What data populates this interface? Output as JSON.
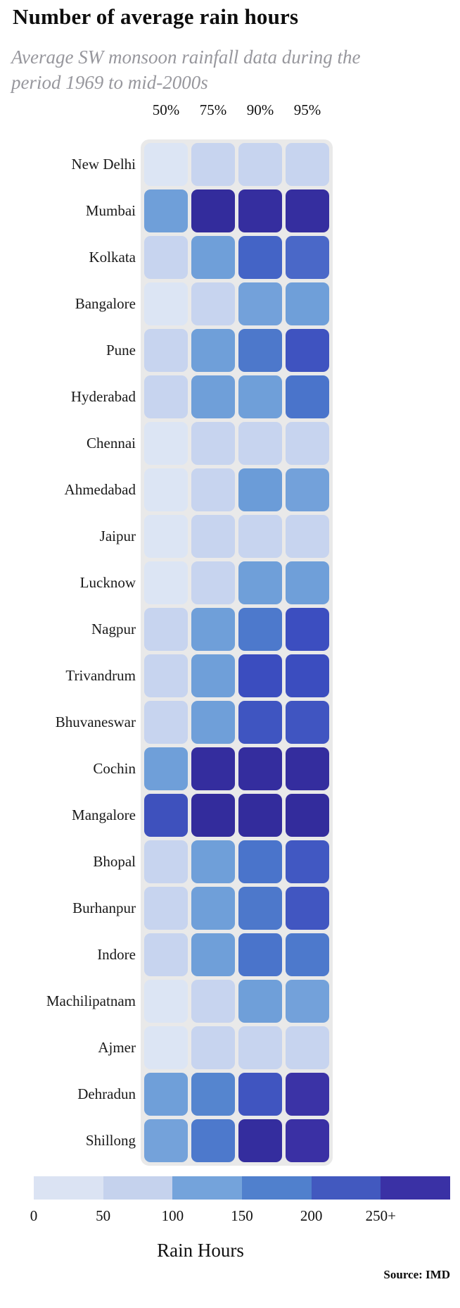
{
  "header": {
    "title": "Number of average rain hours",
    "subtitle": "Average SW monsoon rainfall data during the period 1969 to mid-2000s"
  },
  "legend": {
    "caption": "Rain Hours",
    "ticks": [
      "0",
      "50",
      "100",
      "150",
      "200",
      "250+"
    ],
    "colors": [
      "#dbe3f3",
      "#c5d2ed",
      "#74a3db",
      "#5080cd",
      "#4259bf",
      "#3a31a5"
    ]
  },
  "source": "Source: IMD",
  "chart_data": {
    "type": "heatmap",
    "title": "Number of average rain hours",
    "subtitle": "Average SW monsoon rainfall data during the period 1969 to mid-2000s",
    "x_categories": [
      "50%",
      "75%",
      "90%",
      "95%"
    ],
    "y_categories": [
      "New Delhi",
      "Mumbai",
      "Kolkata",
      "Bangalore",
      "Pune",
      "Hyderabad",
      "Chennai",
      "Ahmedabad",
      "Jaipur",
      "Lucknow",
      "Nagpur",
      "Trivandrum",
      "Bhuvaneswar",
      "Cochin",
      "Mangalore",
      "Bhopal",
      "Burhanpur",
      "Indore",
      "Machilipatnam",
      "Ajmer",
      "Dehradun",
      "Shillong"
    ],
    "value_label": "Rain Hours",
    "value_scale": {
      "bin_ticks": [
        "0",
        "50",
        "100",
        "150",
        "200",
        "250+"
      ],
      "bin_colors": [
        "#dbe3f3",
        "#c5d2ed",
        "#74a3db",
        "#5080cd",
        "#4259bf",
        "#3a31a5"
      ]
    },
    "rows": [
      {
        "city": "New Delhi",
        "values": [
          30,
          65,
          65,
          65
        ],
        "colors": [
          "#dce5f4",
          "#c7d4ef",
          "#c7d4ef",
          "#c7d4ef"
        ]
      },
      {
        "city": "Mumbai",
        "values": [
          120,
          285,
          275,
          275
        ],
        "colors": [
          "#6f9fd9",
          "#332c9c",
          "#352e9f",
          "#352e9f"
        ]
      },
      {
        "city": "Kolkata",
        "values": [
          70,
          125,
          200,
          190
        ],
        "colors": [
          "#c7d4ef",
          "#6f9fd9",
          "#4464c6",
          "#4a68c8"
        ]
      },
      {
        "city": "Bangalore",
        "values": [
          30,
          65,
          115,
          120
        ],
        "colors": [
          "#dce5f4",
          "#c7d4ef",
          "#73a1da",
          "#6f9fd9"
        ]
      },
      {
        "city": "Pune",
        "values": [
          70,
          125,
          170,
          215
        ],
        "colors": [
          "#c7d4ef",
          "#6f9fd9",
          "#4d78cb",
          "#3f53c0"
        ]
      },
      {
        "city": "Hyderabad",
        "values": [
          70,
          125,
          135,
          175
        ],
        "colors": [
          "#c7d4ef",
          "#6f9fd9",
          "#6f9fd9",
          "#4a74cb"
        ]
      },
      {
        "city": "Chennai",
        "values": [
          30,
          60,
          65,
          65
        ],
        "colors": [
          "#dce5f4",
          "#c7d4ef",
          "#c7d4ef",
          "#c7d4ef"
        ]
      },
      {
        "city": "Ahmedabad",
        "values": [
          35,
          70,
          125,
          130
        ],
        "colors": [
          "#dce5f4",
          "#c7d4ef",
          "#6b9cd8",
          "#73a1da"
        ]
      },
      {
        "city": "Jaipur",
        "values": [
          30,
          60,
          60,
          65
        ],
        "colors": [
          "#dce5f4",
          "#c7d4ef",
          "#c7d4ef",
          "#c7d4ef"
        ]
      },
      {
        "city": "Lucknow",
        "values": [
          35,
          70,
          120,
          125
        ],
        "colors": [
          "#dce5f4",
          "#c7d4ef",
          "#6f9fd9",
          "#6f9fd9"
        ]
      },
      {
        "city": "Nagpur",
        "values": [
          70,
          125,
          175,
          220
        ],
        "colors": [
          "#c7d4ef",
          "#6f9fd9",
          "#4d79cc",
          "#3c4ec0"
        ]
      },
      {
        "city": "Trivandrum",
        "values": [
          70,
          125,
          225,
          225
        ],
        "colors": [
          "#c7d4ef",
          "#6f9fd9",
          "#3b4dbf",
          "#3b4dbf"
        ]
      },
      {
        "city": "Bhuvaneswar",
        "values": [
          70,
          125,
          215,
          215
        ],
        "colors": [
          "#c7d4ef",
          "#6f9fd9",
          "#3f55c1",
          "#4055c1"
        ]
      },
      {
        "city": "Cochin",
        "values": [
          125,
          275,
          275,
          275
        ],
        "colors": [
          "#6f9fd9",
          "#342d9e",
          "#342d9e",
          "#342d9e"
        ]
      },
      {
        "city": "Mangalore",
        "values": [
          225,
          280,
          280,
          280
        ],
        "colors": [
          "#3e51bd",
          "#332c9c",
          "#332c9c",
          "#332c9c"
        ]
      },
      {
        "city": "Bhopal",
        "values": [
          70,
          125,
          170,
          215
        ],
        "colors": [
          "#c7d4ef",
          "#6f9fd9",
          "#4a74cb",
          "#4158c2"
        ]
      },
      {
        "city": "Burhanpur",
        "values": [
          70,
          125,
          170,
          215
        ],
        "colors": [
          "#c7d4ef",
          "#6f9fd9",
          "#4d78cb",
          "#4156c1"
        ]
      },
      {
        "city": "Indore",
        "values": [
          70,
          125,
          170,
          175
        ],
        "colors": [
          "#c7d4ef",
          "#6f9fd9",
          "#4a74cb",
          "#4d79cc"
        ]
      },
      {
        "city": "Machilipatnam",
        "values": [
          35,
          70,
          125,
          125
        ],
        "colors": [
          "#dce5f4",
          "#c7d4ef",
          "#6f9fd9",
          "#73a1da"
        ]
      },
      {
        "city": "Ajmer",
        "values": [
          25,
          55,
          60,
          60
        ],
        "colors": [
          "#dce5f4",
          "#c7d4ef",
          "#c7d4ef",
          "#c7d4ef"
        ]
      },
      {
        "city": "Dehradun",
        "values": [
          115,
          145,
          220,
          255
        ],
        "colors": [
          "#6f9fd9",
          "#5585cf",
          "#4055c0",
          "#3b33a6"
        ]
      },
      {
        "city": "Shillong",
        "values": [
          120,
          165,
          285,
          260
        ],
        "colors": [
          "#74a2da",
          "#4d79cc",
          "#342d9e",
          "#3a30a4"
        ]
      }
    ]
  }
}
